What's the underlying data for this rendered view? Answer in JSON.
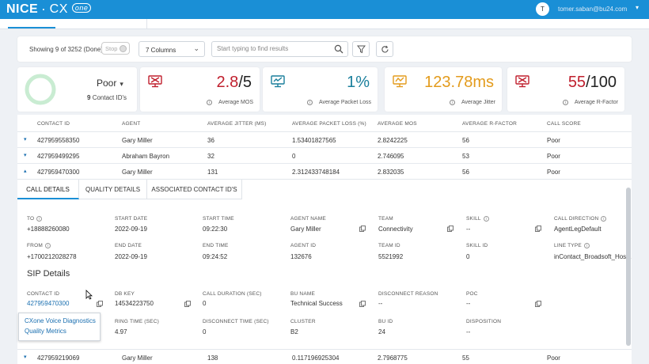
{
  "app": {
    "brand_nice": "NICE",
    "brand_separator": "·",
    "brand_cx": "CX",
    "brand_one": "one",
    "user_initial": "T",
    "user_email": "tomer.saban@bu24.com",
    "user_caret": "▾"
  },
  "toolbar": {
    "showing": "Showing 9 of 3252 (Done)",
    "stop_label": "Stop",
    "columns_value": "7 Columns",
    "search_placeholder": "Start typing to find results"
  },
  "score": {
    "value": "Poor",
    "caret": "▾",
    "count_number": "9",
    "count_suffix": "Contact ID's",
    "ring_color": "#c9ecd2"
  },
  "kpis": {
    "mos": {
      "value_main": "2.8",
      "value_rest": "/5",
      "label": "Average MOS",
      "color": "#c0202e",
      "icon": "monitor-alert-icon"
    },
    "loss": {
      "value": "1%",
      "label": "Average Packet Loss",
      "color": "#1a7f9c",
      "icon": "monitor-check-icon"
    },
    "jitter": {
      "value": "123.78ms",
      "label": "Average Jitter",
      "color": "#e39b1c",
      "icon": "monitor-warning-icon"
    },
    "rfactor": {
      "value_main": "55",
      "value_rest": "/100",
      "label": "Average R-Factor",
      "color": "#c0202e",
      "icon": "monitor-alert-icon"
    }
  },
  "table": {
    "headers": [
      "CONTACT ID",
      "AGENT",
      "AVERAGE JITTER (MS)",
      "AVERAGE PACKET LOSS (%)",
      "AVERAGE MOS",
      "AVERAGE R-FACTOR",
      "CALL SCORE"
    ],
    "rows": [
      {
        "arrow": "▾",
        "contact_id": "427959558350",
        "agent": "Gary Miller",
        "jitter": "36",
        "loss": "1.53401827565",
        "mos": "2.8242225",
        "rfactor": "56",
        "score": "Poor"
      },
      {
        "arrow": "▾",
        "contact_id": "427959499295",
        "agent": "Abraham Bayron",
        "jitter": "32",
        "loss": "0",
        "mos": "2.746095",
        "rfactor": "53",
        "score": "Poor"
      },
      {
        "arrow": "▴",
        "contact_id": "427959470300",
        "agent": "Gary Miller",
        "jitter": "131",
        "loss": "2.312433748184",
        "mos": "2.832035",
        "rfactor": "56",
        "score": "Poor"
      }
    ],
    "last_row": {
      "arrow": "▾",
      "contact_id": "427959219069",
      "agent": "Gary Miller",
      "jitter": "138",
      "loss": "0.117196925304",
      "mos": "2.7968775",
      "rfactor": "55",
      "score": "Poor"
    }
  },
  "details": {
    "tabs": [
      "CALL DETAILS",
      "QUALITY DETAILS",
      "ASSOCIATED CONTACT ID'S"
    ],
    "fields": {
      "to_label": "TO",
      "to": "+18888260080",
      "start_date_label": "START DATE",
      "start_date": "2022-09-19",
      "start_time_label": "START TIME",
      "start_time": "09:22:30",
      "agent_name_label": "AGENT NAME",
      "agent_name": "Gary Miller",
      "team_label": "TEAM",
      "team": "Connectivity",
      "skill_label": "SKILL",
      "skill": "--",
      "call_direction_label": "CALL DIRECTION",
      "call_direction": "AgentLegDefault",
      "from_label": "FROM",
      "from": "+1700212028278",
      "end_date_label": "END DATE",
      "end_date": "2022-09-19",
      "end_time_label": "END TIME",
      "end_time": "09:24:52",
      "agent_id_label": "AGENT ID",
      "agent_id": "132676",
      "team_id_label": "TEAM ID",
      "team_id": "5521992",
      "skill_id_label": "SKILL ID",
      "skill_id": "0",
      "line_type_label": "LINE TYPE",
      "line_type": "inContact_Broadsoft_Hos..."
    },
    "sip_title": "SIP Details",
    "sip": {
      "contact_id_label": "CONTACT ID",
      "contact_id": "427959470300",
      "db_key_label": "DB KEY",
      "db_key": "14534223750",
      "call_duration_label": "CALL DURATION (SEC)",
      "call_duration": "0",
      "bu_name_label": "BU NAME",
      "bu_name": "Technical Success",
      "disconnect_reason_label": "DISCONNECT REASON",
      "disconnect_reason": "--",
      "poc_label": "POC",
      "poc": "--",
      "ring_time_label": "RING TIME (SEC)",
      "ring_time": "4.97",
      "disconnect_time_label": "DISCONNECT TIME (SEC)",
      "disconnect_time": "0",
      "cluster_label": "CLUSTER",
      "cluster": "B2",
      "bu_id_label": "BU ID",
      "bu_id": "24",
      "disposition_label": "DISPOSITION",
      "disposition": "--"
    }
  },
  "popup": {
    "item1": "CXone Voice Diagnostics",
    "item2": "Quality Metrics"
  }
}
